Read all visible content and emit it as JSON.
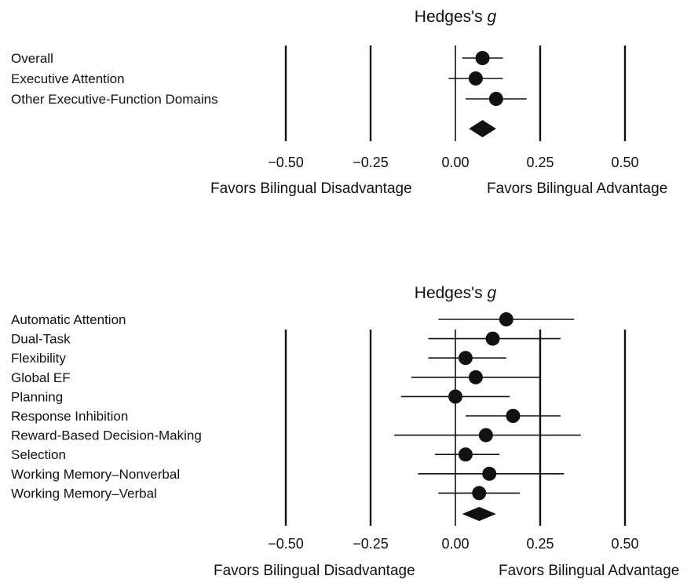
{
  "chart_data": [
    {
      "type": "forest",
      "title": "Hedges's",
      "title_var": "g",
      "x_ticks": [
        -0.5,
        -0.25,
        0.0,
        0.25,
        0.5
      ],
      "x_tick_labels": [
        "−0.50",
        "−0.25",
        "0.00",
        "0.25",
        "0.50"
      ],
      "xlim": [
        -0.5,
        0.5
      ],
      "favor_left": "Favors Bilingual Disadvantage",
      "favor_right": "Favors Bilingual Advantage",
      "rows": [
        {
          "label": "Overall",
          "estimate": 0.08,
          "ci": [
            0.02,
            0.14
          ]
        },
        {
          "label": "Executive Attention",
          "estimate": 0.06,
          "ci": [
            -0.02,
            0.14
          ]
        },
        {
          "label": "Other Executive-Function Domains",
          "estimate": 0.12,
          "ci": [
            0.03,
            0.21
          ]
        }
      ],
      "summary": {
        "estimate": 0.08,
        "ci": [
          0.04,
          0.12
        ]
      }
    },
    {
      "type": "forest",
      "title": "Hedges's",
      "title_var": "g",
      "x_ticks": [
        -0.5,
        -0.25,
        0.0,
        0.25,
        0.5
      ],
      "x_tick_labels": [
        "−0.50",
        "−0.25",
        "0.00",
        "0.25",
        "0.50"
      ],
      "xlim": [
        -0.5,
        0.5
      ],
      "favor_left": "Favors Bilingual Disadvantage",
      "favor_right": "Favors Bilingual Advantage",
      "rows": [
        {
          "label": "Automatic Attention",
          "estimate": 0.15,
          "ci": [
            -0.05,
            0.35
          ]
        },
        {
          "label": "Dual-Task",
          "estimate": 0.11,
          "ci": [
            -0.08,
            0.31
          ]
        },
        {
          "label": "Flexibility",
          "estimate": 0.03,
          "ci": [
            -0.08,
            0.15
          ]
        },
        {
          "label": "Global EF",
          "estimate": 0.06,
          "ci": [
            -0.13,
            0.25
          ]
        },
        {
          "label": "Planning",
          "estimate": 0.0,
          "ci": [
            -0.16,
            0.16
          ]
        },
        {
          "label": "Response Inhibition",
          "estimate": 0.17,
          "ci": [
            0.03,
            0.31
          ]
        },
        {
          "label": "Reward-Based Decision-Making",
          "estimate": 0.09,
          "ci": [
            -0.18,
            0.37
          ]
        },
        {
          "label": "Selection",
          "estimate": 0.03,
          "ci": [
            -0.06,
            0.13
          ]
        },
        {
          "label": "Working Memory–Nonverbal",
          "estimate": 0.1,
          "ci": [
            -0.11,
            0.32
          ]
        },
        {
          "label": "Working Memory–Verbal",
          "estimate": 0.07,
          "ci": [
            -0.05,
            0.19
          ]
        }
      ],
      "summary": {
        "estimate": 0.07,
        "ci": [
          0.02,
          0.12
        ]
      }
    }
  ]
}
